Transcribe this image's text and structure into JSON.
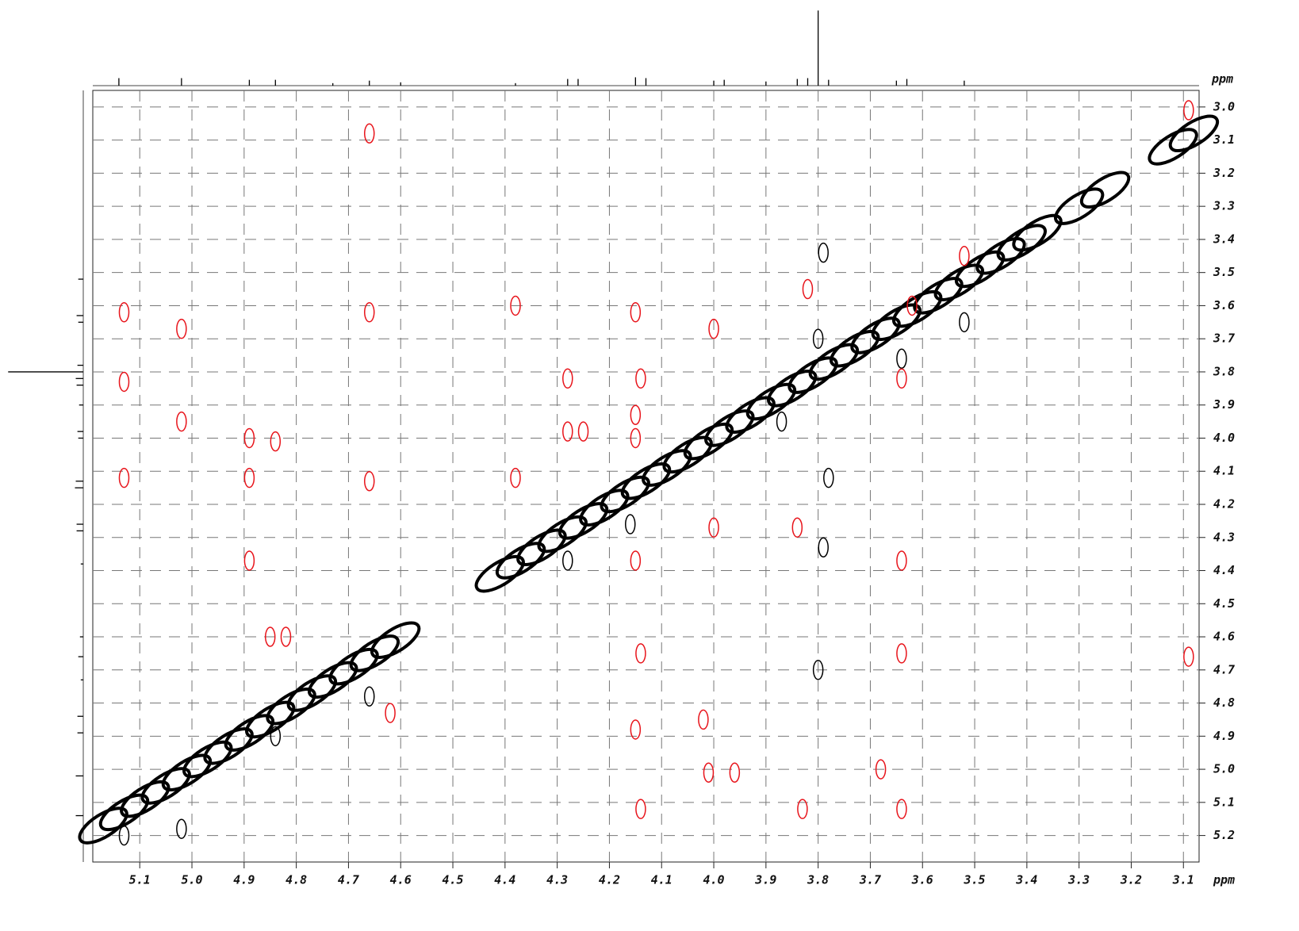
{
  "chart_data": {
    "type": "scatter",
    "xlabel": "ppm",
    "ylabel": "ppm",
    "xlim": [
      5.19,
      3.07
    ],
    "ylim": [
      2.95,
      5.28
    ],
    "xticks": [
      5.1,
      {
        "value": 5,
        "label": "5.0"
      },
      4.9,
      4.8,
      4.7,
      4.6,
      4.5,
      4.4,
      4.3,
      4.2,
      4.1,
      {
        "value": 4,
        "label": "4.0"
      },
      3.9,
      3.8,
      3.7,
      3.6,
      3.5,
      3.4,
      3.3,
      3.2,
      3.1
    ],
    "yticks": [
      {
        "value": 3,
        "label": "3.0"
      },
      3.1,
      3.2,
      3.3,
      3.4,
      3.5,
      3.6,
      3.7,
      3.8,
      3.9,
      {
        "value": 4,
        "label": "4.0"
      },
      4.1,
      4.2,
      4.3,
      4.4,
      4.5,
      4.6,
      4.7,
      4.8,
      4.9,
      {
        "value": 5,
        "label": "5.0"
      },
      5.1,
      5.2
    ],
    "grid": true,
    "series": [
      {
        "color": "#000000",
        "x": [
          5.17,
          5.13,
          5.09,
          5.05,
          5.01,
          4.97,
          4.93,
          4.89,
          4.85,
          4.81,
          4.77,
          4.73,
          4.69,
          4.65,
          4.61,
          4.41,
          4.37,
          4.33,
          4.29,
          4.25,
          4.21,
          4.17,
          4.13,
          4.09,
          4.05,
          4.01,
          3.97,
          3.93,
          3.89,
          3.85,
          3.81,
          3.77,
          3.73,
          3.69,
          3.65,
          3.61,
          3.57,
          3.53,
          3.49,
          3.45,
          3.41,
          3.38,
          3.3,
          3.25,
          3.12,
          3.08
        ],
        "y": [
          5.17,
          5.13,
          5.09,
          5.05,
          5.01,
          4.97,
          4.93,
          4.89,
          4.85,
          4.81,
          4.77,
          4.73,
          4.69,
          4.65,
          4.61,
          4.41,
          4.37,
          4.33,
          4.29,
          4.25,
          4.21,
          4.17,
          4.13,
          4.09,
          4.05,
          4.01,
          3.97,
          3.93,
          3.89,
          3.85,
          3.81,
          3.77,
          3.73,
          3.69,
          3.65,
          3.61,
          3.57,
          3.53,
          3.49,
          3.45,
          3.41,
          3.38,
          3.3,
          3.25,
          3.12,
          3.08
        ]
      },
      {
        "color": "#000000",
        "x": [
          3.79,
          3.78,
          3.8,
          3.79,
          3.64,
          3.87,
          4.16,
          4.28,
          5.13,
          5.02,
          4.84,
          4.66,
          3.52,
          3.8
        ],
        "y": [
          3.44,
          4.12,
          4.7,
          4.33,
          3.76,
          3.95,
          4.26,
          4.37,
          5.2,
          5.18,
          4.9,
          4.78,
          3.65,
          3.7
        ]
      },
      {
        "color": "#e8141b",
        "x": [
          3.09,
          4.66,
          5.13,
          5.02,
          4.66,
          4.38,
          4.15,
          4.0,
          5.13,
          4.28,
          4.14,
          5.02,
          4.28,
          4.25,
          4.15,
          4.15,
          4.89,
          4.84,
          5.13,
          4.89,
          4.66,
          4.38,
          4.0,
          3.84,
          3.64,
          4.89,
          4.15,
          4.85,
          4.82,
          4.14,
          3.64,
          3.09,
          4.62,
          4.15,
          4.02,
          3.96,
          4.01,
          3.68,
          4.14,
          3.83,
          3.64,
          3.82,
          3.62,
          3.52,
          3.64
        ],
        "y": [
          3.01,
          3.08,
          3.62,
          3.67,
          3.62,
          3.6,
          3.62,
          3.67,
          3.83,
          3.82,
          3.82,
          3.95,
          3.98,
          3.98,
          3.93,
          4.0,
          4.0,
          4.01,
          4.12,
          4.12,
          4.13,
          4.12,
          4.27,
          4.27,
          4.37,
          4.37,
          4.37,
          4.6,
          4.6,
          4.65,
          4.65,
          4.66,
          4.83,
          4.88,
          4.85,
          5.01,
          5.01,
          5.0,
          5.12,
          5.12,
          5.12,
          3.55,
          3.6,
          3.45,
          3.82
        ]
      }
    ],
    "projection": {
      "x": [
        5.14,
        5.02,
        4.89,
        4.84,
        4.73,
        4.66,
        4.6,
        4.38,
        4.28,
        4.26,
        4.15,
        4.13,
        4.0,
        3.98,
        3.9,
        3.84,
        3.82,
        3.8,
        3.78,
        3.65,
        3.63,
        3.52
      ],
      "values": [
        9,
        9,
        7,
        7,
        3,
        6,
        4,
        3,
        8,
        8,
        10,
        9,
        6,
        7,
        5,
        8,
        9,
        90,
        7,
        6,
        8,
        6
      ],
      "ylim": [
        0,
        95
      ],
      "color": "#000000"
    }
  }
}
